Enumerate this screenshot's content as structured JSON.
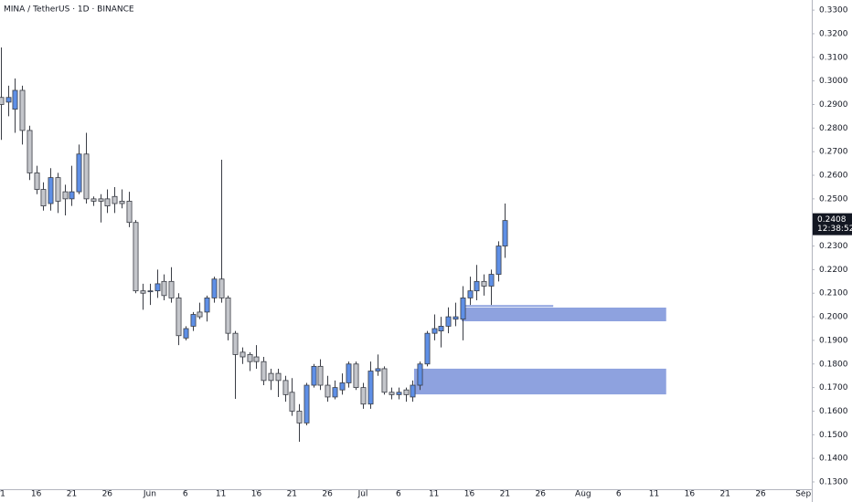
{
  "chart_data": {
    "type": "candlestick",
    "title": "MINA / TetherUS · 1D · BINANCE",
    "x": [
      0,
      1,
      2,
      3,
      4,
      5,
      6,
      7,
      8,
      9,
      10,
      11,
      12,
      13,
      14,
      15,
      16,
      17,
      18,
      19,
      20,
      21,
      22,
      23,
      24,
      25,
      26,
      27,
      28,
      29,
      30,
      31,
      32,
      33,
      34,
      35,
      36,
      37,
      38,
      39,
      40,
      41,
      42,
      43,
      44,
      45,
      46,
      47,
      48,
      49,
      50,
      51,
      52,
      53,
      54,
      55,
      56,
      57,
      58,
      59,
      60,
      61,
      62,
      63,
      64,
      65,
      66,
      67,
      68,
      69,
      70,
      71
    ],
    "open": [
      0.293,
      0.291,
      0.288,
      0.296,
      0.279,
      0.261,
      0.254,
      0.248,
      0.259,
      0.253,
      0.25,
      0.253,
      0.269,
      0.25,
      0.25,
      0.25,
      0.251,
      0.249,
      0.249,
      0.24,
      0.211,
      0.211,
      0.211,
      0.215,
      0.215,
      0.208,
      0.191,
      0.196,
      0.202,
      0.202,
      0.208,
      0.216,
      0.208,
      0.193,
      0.185,
      0.184,
      0.183,
      0.181,
      0.176,
      0.176,
      0.173,
      0.168,
      0.16,
      0.155,
      0.171,
      0.179,
      0.171,
      0.166,
      0.169,
      0.172,
      0.18,
      0.17,
      0.163,
      0.177,
      0.178,
      0.168,
      0.167,
      0.169,
      0.166,
      0.171,
      0.18,
      0.193,
      0.194,
      0.196,
      0.199,
      0.199,
      0.208,
      0.211,
      0.215,
      0.213,
      0.218,
      0.23
    ],
    "high": [
      0.3142,
      0.298,
      0.301,
      0.298,
      0.281,
      0.264,
      0.257,
      0.263,
      0.261,
      0.256,
      0.264,
      0.273,
      0.278,
      0.251,
      0.252,
      0.254,
      0.255,
      0.254,
      0.253,
      0.241,
      0.214,
      0.214,
      0.22,
      0.218,
      0.221,
      0.21,
      0.196,
      0.202,
      0.206,
      0.209,
      0.217,
      0.2666,
      0.209,
      0.194,
      0.187,
      0.185,
      0.188,
      0.183,
      0.178,
      0.178,
      0.175,
      0.174,
      0.163,
      0.172,
      0.18,
      0.182,
      0.175,
      0.173,
      0.176,
      0.181,
      0.181,
      0.172,
      0.181,
      0.184,
      0.179,
      0.17,
      0.17,
      0.17,
      0.173,
      0.181,
      0.194,
      0.201,
      0.2,
      0.204,
      0.206,
      0.213,
      0.217,
      0.222,
      0.218,
      0.22,
      0.232,
      0.248
    ],
    "low": [
      0.275,
      0.285,
      0.278,
      0.273,
      0.258,
      0.252,
      0.245,
      0.245,
      0.244,
      0.243,
      0.247,
      0.252,
      0.248,
      0.247,
      0.24,
      0.244,
      0.244,
      0.246,
      0.238,
      0.21,
      0.203,
      0.205,
      0.208,
      0.207,
      0.206,
      0.188,
      0.19,
      0.194,
      0.199,
      0.198,
      0.206,
      0.206,
      0.19,
      0.1652,
      0.18,
      0.177,
      0.178,
      0.171,
      0.169,
      0.166,
      0.164,
      0.158,
      0.147,
      0.154,
      0.17,
      0.169,
      0.164,
      0.165,
      0.167,
      0.17,
      0.169,
      0.161,
      0.161,
      0.175,
      0.167,
      0.165,
      0.165,
      0.164,
      0.164,
      0.169,
      0.179,
      0.19,
      0.187,
      0.193,
      0.196,
      0.19,
      0.205,
      0.207,
      0.209,
      0.205,
      0.215,
      0.225
    ],
    "close": [
      0.29,
      0.293,
      0.296,
      0.279,
      0.261,
      0.254,
      0.247,
      0.259,
      0.249,
      0.25,
      0.253,
      0.269,
      0.25,
      0.249,
      0.249,
      0.247,
      0.248,
      0.248,
      0.24,
      0.211,
      0.21,
      0.211,
      0.214,
      0.209,
      0.208,
      0.192,
      0.195,
      0.201,
      0.2,
      0.208,
      0.216,
      0.208,
      0.193,
      0.184,
      0.183,
      0.181,
      0.181,
      0.173,
      0.173,
      0.173,
      0.167,
      0.16,
      0.155,
      0.171,
      0.179,
      0.171,
      0.166,
      0.17,
      0.172,
      0.18,
      0.17,
      0.163,
      0.177,
      0.178,
      0.168,
      0.167,
      0.168,
      0.167,
      0.171,
      0.18,
      0.193,
      0.195,
      0.196,
      0.2,
      0.2,
      0.208,
      0.211,
      0.215,
      0.213,
      0.218,
      0.23,
      0.2408
    ],
    "up_color": "#5e8fe6",
    "down_color": "#c4c6cb",
    "zone_color": "#8ea2df",
    "xlim": [
      -0.1,
      114.2
    ],
    "ylim": [
      0.1269,
      0.3343
    ],
    "xticks": [
      {
        "value": 0,
        "label": "1"
      },
      {
        "value": 5,
        "label": "16"
      },
      {
        "value": 10,
        "label": "21"
      },
      {
        "value": 15,
        "label": "26"
      },
      {
        "value": 21,
        "label": "Jun"
      },
      {
        "value": 26,
        "label": "6"
      },
      {
        "value": 31,
        "label": "11"
      },
      {
        "value": 36,
        "label": "16"
      },
      {
        "value": 41,
        "label": "21"
      },
      {
        "value": 46,
        "label": "26"
      },
      {
        "value": 51,
        "label": "Jul"
      },
      {
        "value": 56,
        "label": "6"
      },
      {
        "value": 61,
        "label": "11"
      },
      {
        "value": 66,
        "label": "16"
      },
      {
        "value": 71,
        "label": "21"
      },
      {
        "value": 76,
        "label": "26"
      },
      {
        "value": 82,
        "label": "Aug"
      },
      {
        "value": 87,
        "label": "6"
      },
      {
        "value": 92,
        "label": "11"
      },
      {
        "value": 97,
        "label": "16"
      },
      {
        "value": 102,
        "label": "21"
      },
      {
        "value": 107,
        "label": "26"
      },
      {
        "value": 113,
        "label": "Sep"
      }
    ],
    "yticks": [
      {
        "value": 0.33,
        "label": "0.3300"
      },
      {
        "value": 0.32,
        "label": "0.3200"
      },
      {
        "value": 0.31,
        "label": "0.3100"
      },
      {
        "value": 0.3,
        "label": "0.3000"
      },
      {
        "value": 0.29,
        "label": "0.2900"
      },
      {
        "value": 0.28,
        "label": "0.2800"
      },
      {
        "value": 0.27,
        "label": "0.2700"
      },
      {
        "value": 0.26,
        "label": "0.2600"
      },
      {
        "value": 0.25,
        "label": "0.2500"
      },
      {
        "value": 0.24,
        "label": "0.2400"
      },
      {
        "value": 0.23,
        "label": "0.2300"
      },
      {
        "value": 0.22,
        "label": "0.2200"
      },
      {
        "value": 0.21,
        "label": "0.2100"
      },
      {
        "value": 0.2,
        "label": "0.2000"
      },
      {
        "value": 0.19,
        "label": "0.1900"
      },
      {
        "value": 0.18,
        "label": "0.1800"
      },
      {
        "value": 0.17,
        "label": "0.1700"
      },
      {
        "value": 0.16,
        "label": "0.1600"
      },
      {
        "value": 0.15,
        "label": "0.1500"
      },
      {
        "value": 0.14,
        "label": "0.1400"
      },
      {
        "value": 0.13,
        "label": "0.1300"
      }
    ],
    "zones": [
      {
        "x0": 64.9,
        "x1": 93.7,
        "top": 0.2039,
        "bottom": 0.1981
      },
      {
        "x0": 58.2,
        "x1": 93.7,
        "top": 0.178,
        "bottom": 0.1671
      }
    ],
    "zone_line": {
      "x0": 64.9,
      "x1": 77.8,
      "y": 0.2046
    },
    "last_price": 0.2408,
    "countdown": "12:38:52"
  }
}
